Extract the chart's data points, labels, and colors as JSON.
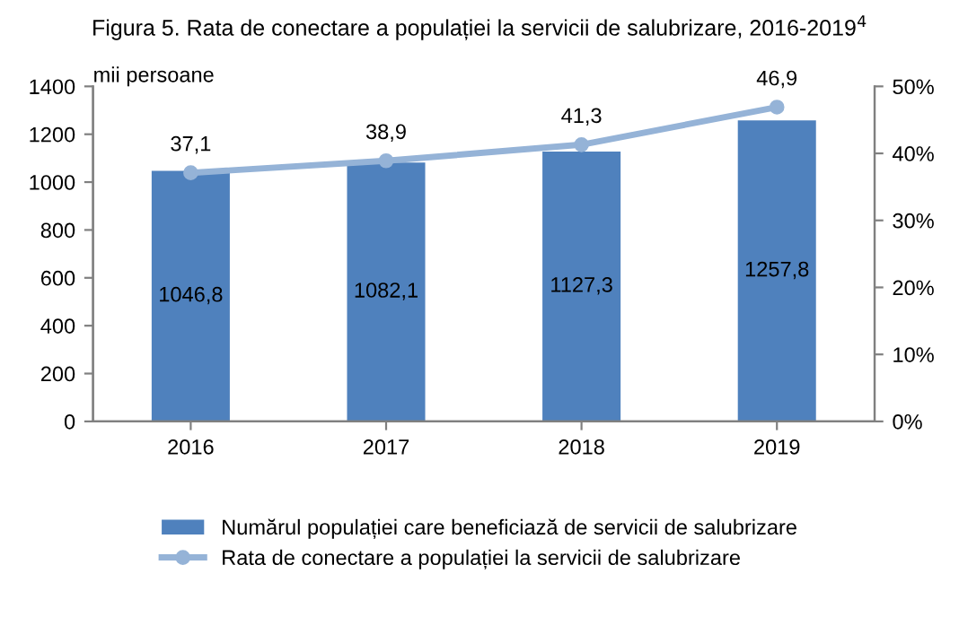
{
  "chart_data": {
    "type": "bar",
    "title": "Figura 5. Rata de conectare a populației la servicii de salubrizare, 2016-2019$^{4}$",
    "ylabel": "mii persoane",
    "categories": [
      "2016",
      "2017",
      "2018",
      "2019"
    ],
    "series": [
      {
        "name": "Numărul populației care beneficiază de servicii de salubrizare",
        "color": "#4f81bd",
        "values": [
          1046.8,
          1082.1,
          1127.3,
          1257.8
        ],
        "value_labels": [
          "1046,8",
          "1082,1",
          "1127,3",
          "1257,8"
        ]
      },
      {
        "name": "Rata de conectare a populației la servicii de salubrizare",
        "type": "line",
        "axis": "y2",
        "color": "#95b3d7",
        "marker": "circle",
        "values": [
          37.1,
          38.9,
          41.3,
          46.9
        ],
        "value_labels": [
          "37,1",
          "38,9",
          "41,3",
          "46,9"
        ]
      }
    ],
    "ylim": [
      0,
      1400
    ],
    "yticks": [
      0,
      200,
      400,
      600,
      800,
      1000,
      1200,
      1400
    ],
    "y2lim": [
      0,
      50
    ],
    "y2ticks": [
      {
        "value": 0,
        "label": "0%"
      },
      {
        "value": 10,
        "label": "10%"
      },
      {
        "value": 20,
        "label": "20%"
      },
      {
        "value": 30,
        "label": "30%"
      },
      {
        "value": 40,
        "label": "40%"
      },
      {
        "value": 50,
        "label": "50%"
      }
    ],
    "grid": false,
    "legend": "bottom"
  }
}
